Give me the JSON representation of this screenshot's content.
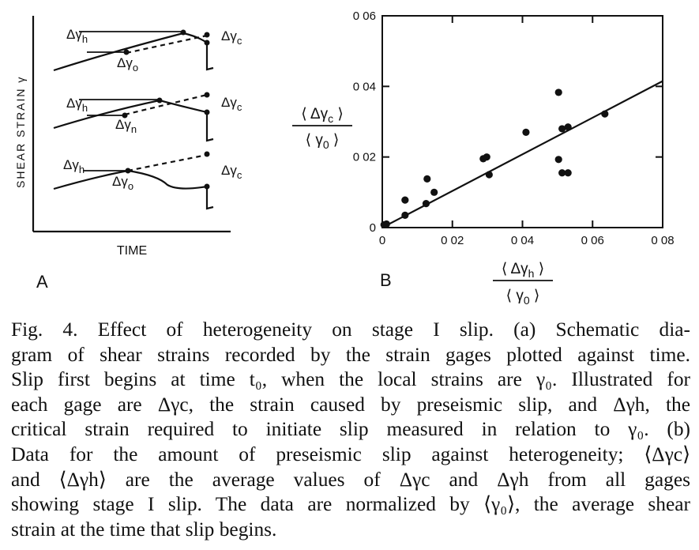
{
  "panel_a": {
    "letter": "A",
    "ylabel": "SHEAR STRAIN γ",
    "xlabel": "TIME",
    "rows": [
      {
        "h_label": "Δγ",
        "h_sub": "h",
        "o_label": "Δγ",
        "o_sub": "o",
        "c_label": "Δγ",
        "c_sub": "c"
      },
      {
        "h_label": "Δγ",
        "h_sub": "h",
        "o_label": "Δγ",
        "o_sub": "n",
        "c_label": "Δγ",
        "c_sub": "c"
      },
      {
        "h_label": "Δγ",
        "h_sub": "h",
        "o_label": "Δγ",
        "o_sub": "o",
        "c_label": "Δγ",
        "c_sub": "c"
      }
    ]
  },
  "panel_b": {
    "letter": "B",
    "ylabel": {
      "num_main": "Δγ",
      "num_sub": "c",
      "den_main": "γ",
      "den_sub": "0"
    },
    "xlabel": {
      "num_main": "Δγ",
      "num_sub": "h",
      "den_main": "γ",
      "den_sub": "0"
    }
  },
  "chart_data": [
    {
      "type": "diagram",
      "panel": "A",
      "title": "",
      "xlabel": "TIME",
      "ylabel": "SHEAR STRAIN γ",
      "grid": false
    },
    {
      "type": "scatter",
      "panel": "B",
      "title": "",
      "xlabel": "⟨Δγh⟩ / ⟨γ0⟩",
      "ylabel": "⟨Δγc⟩ / ⟨γ0⟩",
      "xlim": [
        0,
        0.08
      ],
      "ylim": [
        0,
        0.06
      ],
      "x_ticks": [
        0,
        0.02,
        0.04,
        0.06,
        0.08
      ],
      "x_tick_labels": [
        "0",
        "0 02",
        "0 04",
        "0 06",
        "0 08"
      ],
      "y_ticks": [
        0,
        0.02,
        0.04,
        0.06
      ],
      "y_tick_labels": [
        "0",
        "0 02",
        "0 04",
        "0 06"
      ],
      "grid": false,
      "points": [
        {
          "x": 0.0005,
          "y": 0.0008
        },
        {
          "x": 0.0012,
          "y": 0.001
        },
        {
          "x": 0.0065,
          "y": 0.0035
        },
        {
          "x": 0.0065,
          "y": 0.0078
        },
        {
          "x": 0.0125,
          "y": 0.0068
        },
        {
          "x": 0.0128,
          "y": 0.0138
        },
        {
          "x": 0.0148,
          "y": 0.01
        },
        {
          "x": 0.0288,
          "y": 0.0195
        },
        {
          "x": 0.0298,
          "y": 0.02
        },
        {
          "x": 0.0305,
          "y": 0.015
        },
        {
          "x": 0.041,
          "y": 0.027
        },
        {
          "x": 0.0503,
          "y": 0.0383
        },
        {
          "x": 0.0503,
          "y": 0.0193
        },
        {
          "x": 0.0513,
          "y": 0.0155
        },
        {
          "x": 0.0513,
          "y": 0.028
        },
        {
          "x": 0.053,
          "y": 0.0285
        },
        {
          "x": 0.053,
          "y": 0.0155
        },
        {
          "x": 0.0635,
          "y": 0.0322
        }
      ],
      "fit_line": {
        "x": [
          0,
          0.08
        ],
        "y": [
          0,
          0.0415
        ]
      }
    }
  ],
  "caption_lines": [
    "Fig. 4.   Effect of heterogeneity on stage I slip. (a) Schematic dia-",
    "gram of shear strains recorded by the strain gages plotted against time.",
    "Slip first begins at time t₀, when the local strains are γ₀. Illustrated for",
    "each gage are Δγc, the strain caused by preseismic slip, and Δγh, the",
    "critical strain required to initiate slip measured in relation to γ₀. (b)",
    "Data for the amount of preseismic slip against heterogeneity; ⟨Δγc⟩",
    "and ⟨Δγh⟩ are the average values of Δγc and Δγh from all gages",
    "showing stage I slip. The data are normalized by ⟨γ₀⟩, the average shear",
    "strain at the time that slip begins."
  ]
}
